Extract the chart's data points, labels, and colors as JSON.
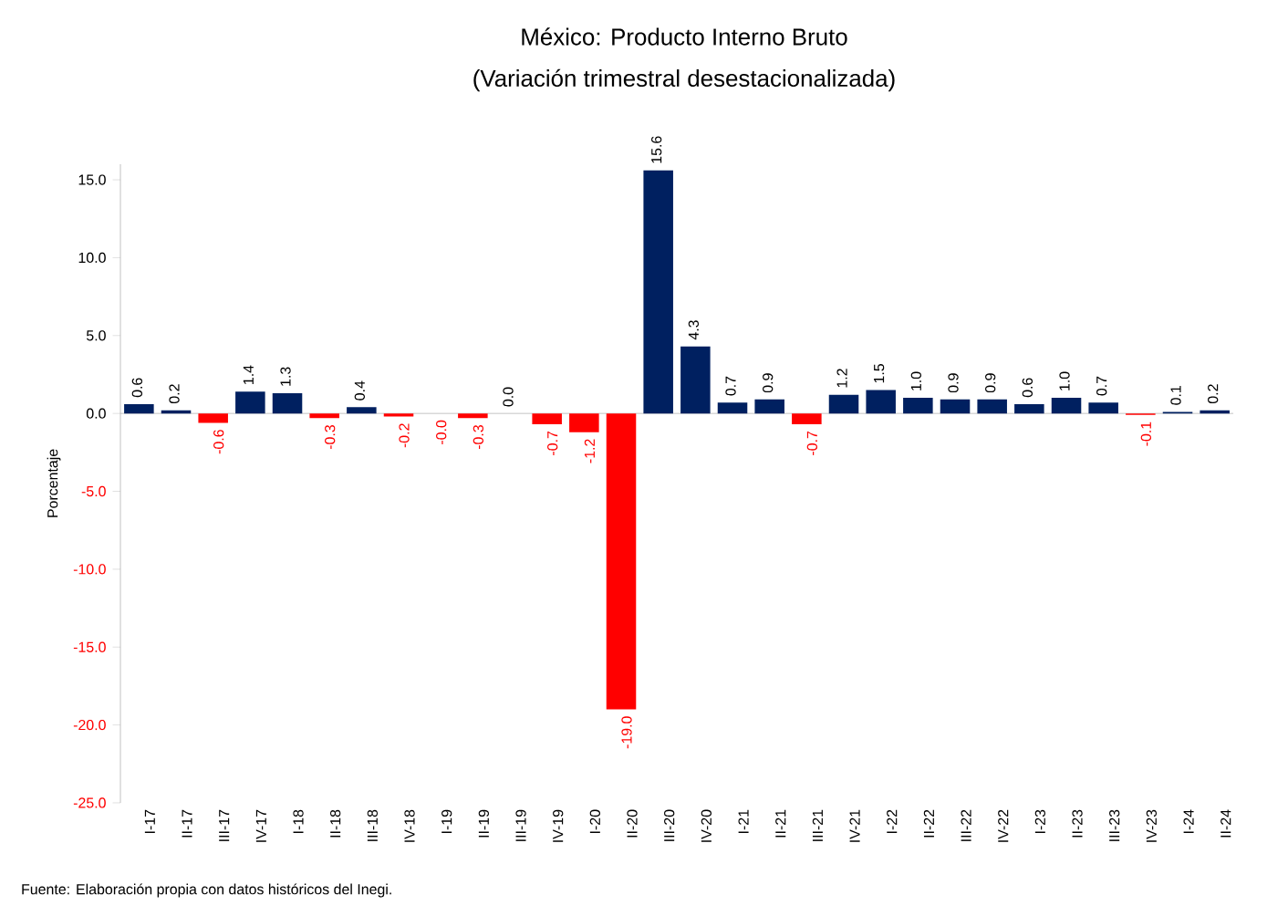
{
  "chart_data": {
    "type": "bar",
    "title": "México: Producto Interno Bruto",
    "subtitle": "(Variación trimestral desestacionalizada)",
    "ylabel": "Porcentaje",
    "categories": [
      "I-17",
      "II-17",
      "III-17",
      "IV-17",
      "I-18",
      "II-18",
      "III-18",
      "IV-18",
      "I-19",
      "II-19",
      "III-19",
      "IV-19",
      "I-20",
      "II-20",
      "III-20",
      "IV-20",
      "I-21",
      "II-21",
      "III-21",
      "IV-21",
      "I-22",
      "II-22",
      "III-22",
      "IV-22",
      "I-23",
      "II-23",
      "III-23",
      "IV-23",
      "I-24",
      "II-24"
    ],
    "values": [
      0.6,
      0.2,
      -0.6,
      1.4,
      1.3,
      -0.3,
      0.4,
      -0.2,
      -0.0,
      -0.3,
      0.0,
      -0.7,
      -1.2,
      -19.0,
      15.6,
      4.3,
      0.7,
      0.9,
      -0.7,
      1.2,
      1.5,
      1.0,
      0.9,
      0.9,
      0.6,
      1.0,
      0.7,
      -0.1,
      0.1,
      0.2
    ],
    "value_labels": [
      "0.6",
      "0.2",
      "-0.6",
      "1.4",
      "1.3",
      "-0.3",
      "0.4",
      "-0.2",
      "-0.0",
      "-0.3",
      "0.0",
      "-0.7",
      "-1.2",
      "-19.0",
      "15.6",
      "4.3",
      "0.7",
      "0.9",
      "-0.7",
      "1.2",
      "1.5",
      "1.0",
      "0.9",
      "0.9",
      "0.6",
      "1.0",
      "0.7",
      "-0.1",
      "0.1",
      "0.2"
    ],
    "colors": [
      "#002060",
      "#002060",
      "#ff0000",
      "#002060",
      "#002060",
      "#ff0000",
      "#002060",
      "#ff0000",
      "#ff0000",
      "#ff0000",
      "#002060",
      "#ff0000",
      "#ff0000",
      "#ff0000",
      "#002060",
      "#002060",
      "#002060",
      "#002060",
      "#ff0000",
      "#002060",
      "#002060",
      "#002060",
      "#002060",
      "#002060",
      "#002060",
      "#002060",
      "#002060",
      "#ff0000",
      "#002060",
      "#002060"
    ],
    "ylim": [
      -25,
      16
    ],
    "yticks": [
      {
        "value": -25,
        "label": "-25.0"
      },
      {
        "value": -20,
        "label": "-20.0"
      },
      {
        "value": -15,
        "label": "-15.0"
      },
      {
        "value": -10,
        "label": "-10.0"
      },
      {
        "value": -5,
        "label": "-5.0"
      },
      {
        "value": 0,
        "label": "0.0"
      },
      {
        "value": 5,
        "label": "5.0"
      },
      {
        "value": 10,
        "label": "10.0"
      },
      {
        "value": 15,
        "label": "15.0"
      }
    ],
    "annotations": [
      "Fuente: Elaboración propia con datos históricos del Inegi."
    ]
  }
}
